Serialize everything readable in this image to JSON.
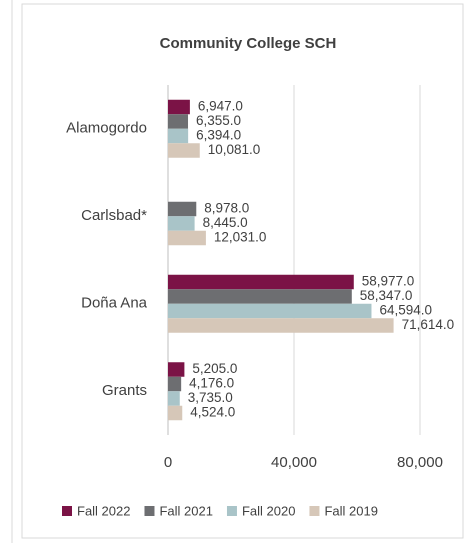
{
  "chart_data": {
    "type": "hbar",
    "title": "Community College SCH",
    "categories": [
      "Alamogordo",
      "Carlsbad*",
      "Doña Ana",
      "Grants"
    ],
    "series": [
      {
        "name": "Fall 2022",
        "color": "#7b1346",
        "values": [
          6947,
          null,
          58977,
          5205
        ],
        "value_labels": [
          "6,947.0",
          null,
          "58,977.0",
          "5,205.0"
        ]
      },
      {
        "name": "Fall 2021",
        "color": "#6d6e71",
        "values": [
          6355,
          8978,
          58347,
          4176
        ],
        "value_labels": [
          "6,355.0",
          "8,978.0",
          "58,347.0",
          "4,176.0"
        ]
      },
      {
        "name": "Fall 2020",
        "color": "#a9c4c8",
        "values": [
          6394,
          8445,
          64594,
          3735
        ],
        "value_labels": [
          "6,394.0",
          "8,445.0",
          "64,594.0",
          "3,735.0"
        ]
      },
      {
        "name": "Fall 2019",
        "color": "#d6c7b8",
        "values": [
          10081,
          12031,
          71614,
          4524
        ],
        "value_labels": [
          "10,081.0",
          "12,031.0",
          "71,614.0",
          "4,524.0"
        ]
      }
    ],
    "xlim": [
      0,
      90000
    ],
    "xticks": [
      0,
      {
        "value": 40000,
        "label": "40,000"
      },
      {
        "value": 80000,
        "label": "80,000"
      }
    ],
    "grid": true,
    "legend": "bottom"
  }
}
